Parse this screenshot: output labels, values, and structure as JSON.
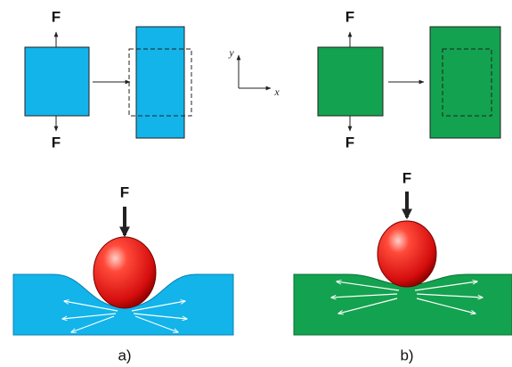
{
  "panels": [
    {
      "top_force_label": "F",
      "bottom_force_label": "F",
      "indent_force_label": "F",
      "caption": "a)"
    },
    {
      "top_force_label": "F",
      "bottom_force_label": "F",
      "indent_force_label": "F",
      "caption": "b)"
    }
  ],
  "axes": {
    "y": "y",
    "x": "x"
  }
}
